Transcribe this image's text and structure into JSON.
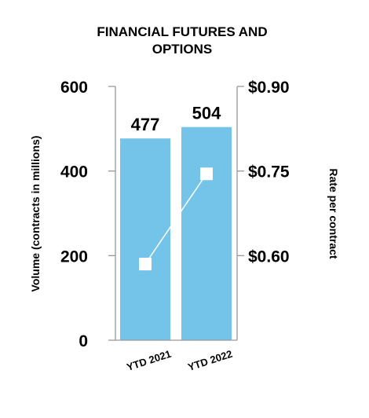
{
  "chart_data": {
    "type": "bar",
    "title_lines": [
      "FINANCIAL FUTURES AND",
      "OPTIONS"
    ],
    "categories": [
      "YTD 2021",
      "YTD 2022"
    ],
    "bar_series": {
      "values": [
        477,
        504
      ],
      "value_labels": [
        "477",
        "504"
      ],
      "color": "#74C3E8"
    },
    "line_series": {
      "values": [
        0.585,
        0.745
      ],
      "color": "#ffffff"
    },
    "y_left": {
      "label": "Volume (contracts in millions)",
      "range": [
        0,
        600
      ],
      "ticks": [
        0,
        200,
        400,
        600
      ],
      "tick_labels": [
        "0",
        "200",
        "400",
        "600"
      ]
    },
    "y_right": {
      "label": "Rate per contract",
      "range": [
        0.45,
        0.9
      ],
      "ticks": [
        0.6,
        0.75,
        0.9
      ],
      "tick_labels": [
        "$0.60",
        "$0.75",
        "$0.90"
      ]
    },
    "grid": false,
    "legend": "none",
    "axis_color": "#999999"
  }
}
